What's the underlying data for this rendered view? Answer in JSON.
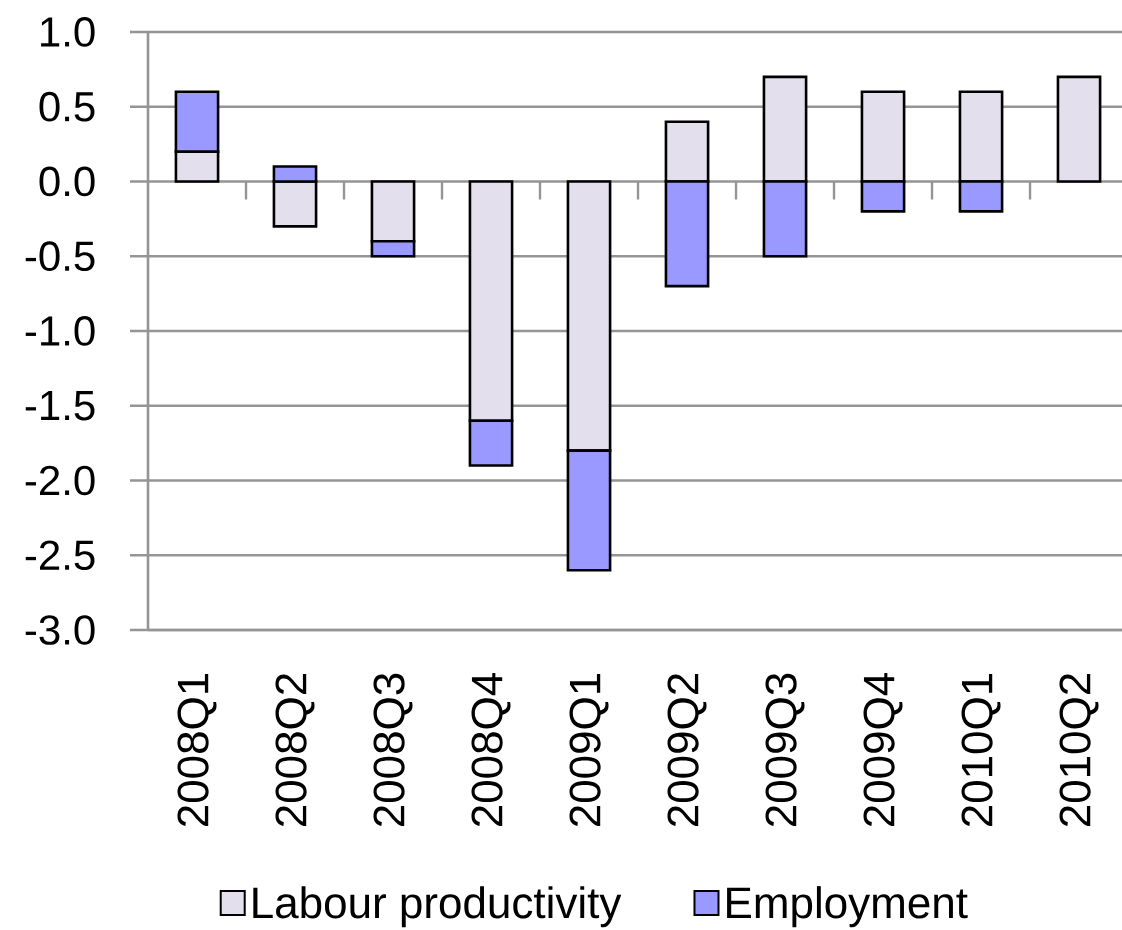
{
  "chart_data": {
    "type": "bar",
    "stacked": true,
    "categories": [
      "2008Q1",
      "2008Q2",
      "2008Q3",
      "2008Q4",
      "2009Q1",
      "2009Q2",
      "2009Q3",
      "2009Q4",
      "2010Q1",
      "2010Q2"
    ],
    "series": [
      {
        "name": "Labour productivity",
        "color": "#e4dfec",
        "values": [
          0.2,
          -0.3,
          -0.4,
          -1.6,
          -1.8,
          0.4,
          0.7,
          0.6,
          0.6,
          0.7
        ]
      },
      {
        "name": "Employment",
        "color": "#9999ff",
        "values": [
          0.4,
          0.1,
          -0.1,
          -0.3,
          -0.8,
          -0.7,
          -0.5,
          -0.2,
          -0.2,
          null
        ]
      }
    ],
    "ylim": [
      -3,
      1
    ],
    "yticks": [
      {
        "value": -3,
        "label": "-3.0"
      },
      {
        "value": -2.5,
        "label": "-2.5"
      },
      {
        "value": -2,
        "label": "-2.0"
      },
      {
        "value": -1.5,
        "label": "-1.5"
      },
      {
        "value": -1,
        "label": "-1.0"
      },
      {
        "value": -0.5,
        "label": "-0.5"
      },
      {
        "value": 0,
        "label": "0.0"
      },
      {
        "value": 0.5,
        "label": "0.5"
      },
      {
        "value": 1,
        "label": "1.0"
      }
    ],
    "grid": "y",
    "legend": "bottom"
  }
}
